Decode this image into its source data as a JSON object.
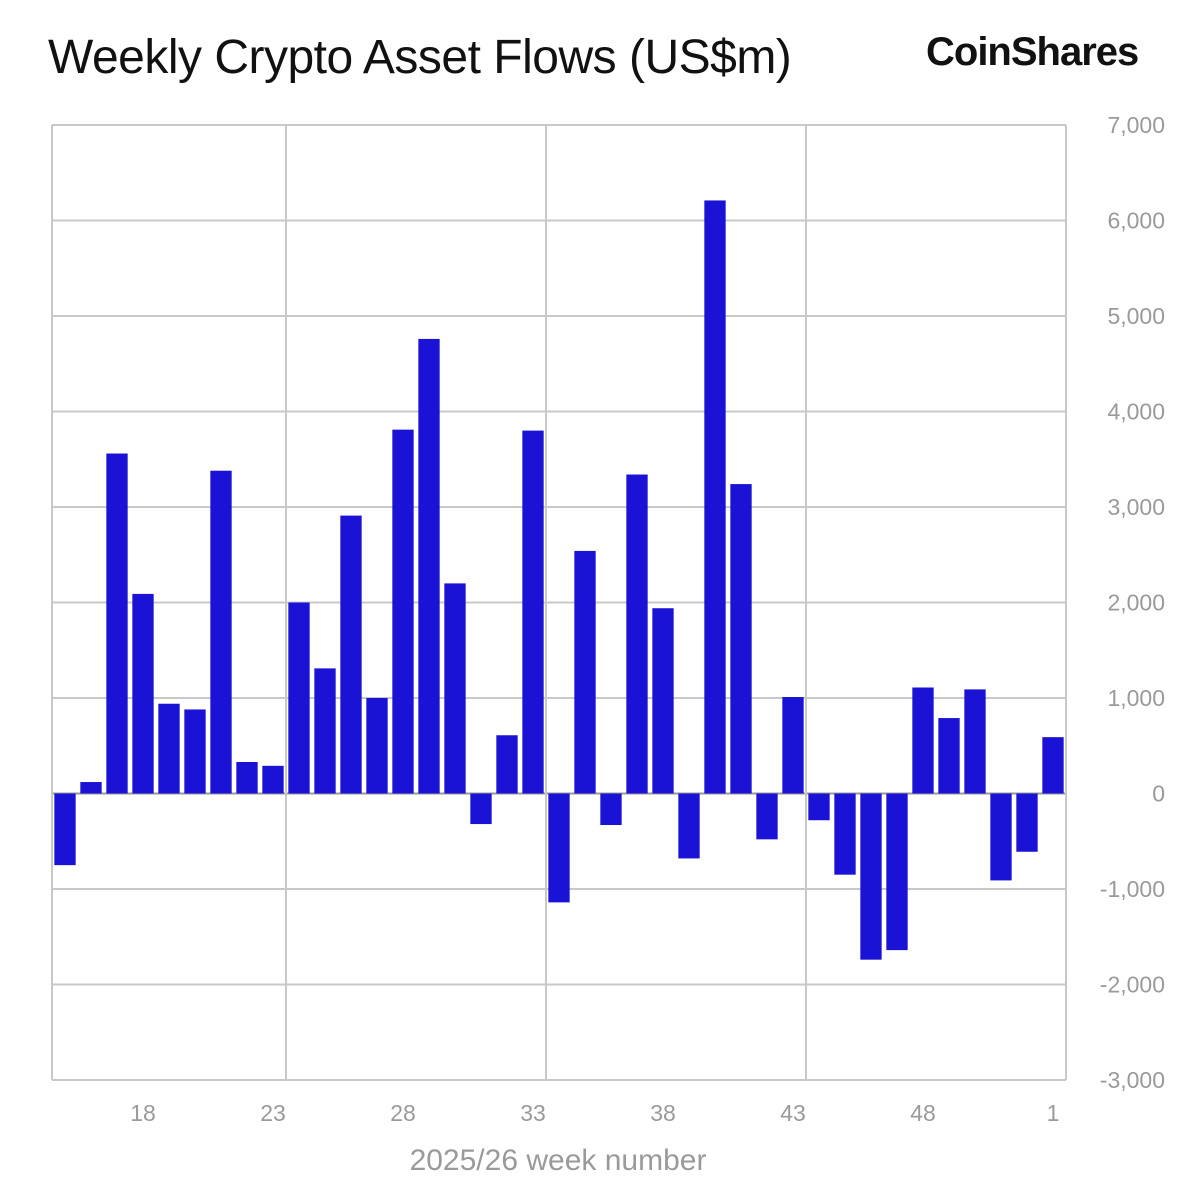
{
  "title": "Weekly Crypto Asset Flows (US$m)",
  "brand": "CoinShares",
  "colors": {
    "bar": "#1a12d4",
    "grid": "#c8c8c8",
    "axis_text": "#9a9a9a",
    "zero_line": "#999999"
  },
  "chart_data": {
    "type": "bar",
    "title": "Weekly Crypto Asset Flows (US$m)",
    "xlabel": "2025/26 week number",
    "ylabel": "",
    "ylim": [
      -3000,
      7000
    ],
    "yticks": [
      7000,
      6000,
      5000,
      4000,
      3000,
      2000,
      1000,
      0,
      -1000,
      -2000,
      -3000
    ],
    "ytick_labels": [
      "7,000",
      "6,000",
      "5,000",
      "4,000",
      "3,000",
      "2,000",
      "1,000",
      "0",
      "-1,000",
      "-2,000",
      "-3,000"
    ],
    "y_axis_side": "right",
    "grid": true,
    "xtick_labels": [
      "18",
      "23",
      "28",
      "33",
      "38",
      "43",
      "48",
      "1"
    ],
    "categories": [
      "15",
      "16",
      "17",
      "18",
      "19",
      "20",
      "21",
      "22",
      "23",
      "24",
      "25",
      "26",
      "27",
      "28",
      "29",
      "30",
      "31",
      "32",
      "33",
      "34",
      "35",
      "36",
      "37",
      "38",
      "39",
      "40",
      "41",
      "42",
      "43",
      "44",
      "45",
      "46",
      "47",
      "48",
      "49",
      "50",
      "51",
      "52",
      "1"
    ],
    "values": [
      -750,
      120,
      3560,
      2090,
      940,
      880,
      3380,
      330,
      290,
      2000,
      1310,
      2910,
      1000,
      3810,
      4760,
      2200,
      -320,
      610,
      3800,
      -1140,
      2540,
      -330,
      3340,
      1940,
      -680,
      6210,
      3240,
      -480,
      1010,
      -280,
      -850,
      -1740,
      -1640,
      1110,
      790,
      1090,
      -910,
      -610,
      590
    ]
  }
}
